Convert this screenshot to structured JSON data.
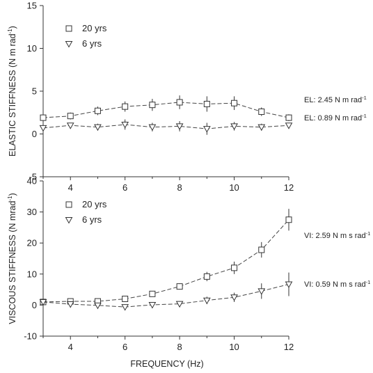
{
  "chart_data": [
    {
      "type": "line",
      "panel": "top",
      "ylabel": "ELASTIC STIFFNESS (N m rad",
      "ylabel_sup": "-1",
      "ylabel_end": ")",
      "xlabel": "",
      "xlim": [
        3,
        12
      ],
      "ylim": [
        -5,
        15
      ],
      "yticks": [
        -5,
        0,
        5,
        10,
        15
      ],
      "xticks": [
        4,
        6,
        8,
        10,
        12
      ],
      "grid": false,
      "legend_position": "top-left",
      "x": [
        3,
        4,
        5,
        6,
        7,
        8,
        9,
        10,
        11,
        12
      ],
      "series": [
        {
          "name": "20 yrs",
          "marker": "square",
          "values": [
            1.9,
            2.1,
            2.7,
            3.2,
            3.4,
            3.7,
            3.5,
            3.6,
            2.6,
            1.9
          ],
          "errors": [
            0.4,
            0.4,
            0.5,
            0.6,
            0.7,
            0.8,
            0.9,
            0.8,
            0.5,
            0.4
          ]
        },
        {
          "name": "6 yrs",
          "marker": "triangle-down",
          "values": [
            0.7,
            1.0,
            0.8,
            1.1,
            0.8,
            0.9,
            0.6,
            0.9,
            0.8,
            1.0
          ],
          "errors": [
            0.3,
            0.3,
            0.4,
            0.6,
            0.5,
            0.6,
            0.7,
            0.5,
            0.4,
            0.3
          ]
        }
      ],
      "annotations": [
        {
          "text": "EL: 2.45 N m rad",
          "sup": "-1",
          "series": "20 yrs"
        },
        {
          "text": "EL: 0.89 N m rad",
          "sup": "-1",
          "series": "6 yrs"
        }
      ]
    },
    {
      "type": "line",
      "panel": "bottom",
      "ylabel": "VISCOUS STIFFNESS (N mrad",
      "ylabel_sup": "-1",
      "ylabel_end": ")",
      "xlabel": "FREQUENCY (Hz)",
      "xlim": [
        3,
        12
      ],
      "ylim": [
        -10,
        40
      ],
      "yticks": [
        -10,
        0,
        10,
        20,
        30,
        40
      ],
      "xticks": [
        4,
        6,
        8,
        10,
        12
      ],
      "grid": false,
      "legend_position": "top-left",
      "x": [
        3,
        4,
        5,
        6,
        7,
        8,
        9,
        10,
        11,
        12
      ],
      "series": [
        {
          "name": "20 yrs",
          "marker": "square",
          "values": [
            1.0,
            1.2,
            1.2,
            2.0,
            3.6,
            6.0,
            9.2,
            12.0,
            17.8,
            27.5
          ],
          "errors": [
            0.5,
            0.6,
            0.6,
            0.7,
            0.9,
            1.0,
            1.5,
            2.0,
            2.5,
            3.5
          ]
        },
        {
          "name": "6 yrs",
          "marker": "triangle-down",
          "values": [
            1.0,
            0.3,
            -0.1,
            -0.6,
            0.1,
            0.4,
            1.5,
            2.5,
            4.5,
            6.7
          ],
          "errors": [
            0.5,
            0.6,
            0.8,
            0.6,
            0.6,
            0.7,
            1.2,
            1.5,
            2.5,
            3.8
          ]
        }
      ],
      "annotations": [
        {
          "text": "VI: 2.59 N m s rad",
          "sup": "-1",
          "series": "20 yrs"
        },
        {
          "text": "VI: 0.59 N m s rad",
          "sup": "-1",
          "series": "6 yrs"
        }
      ]
    }
  ]
}
